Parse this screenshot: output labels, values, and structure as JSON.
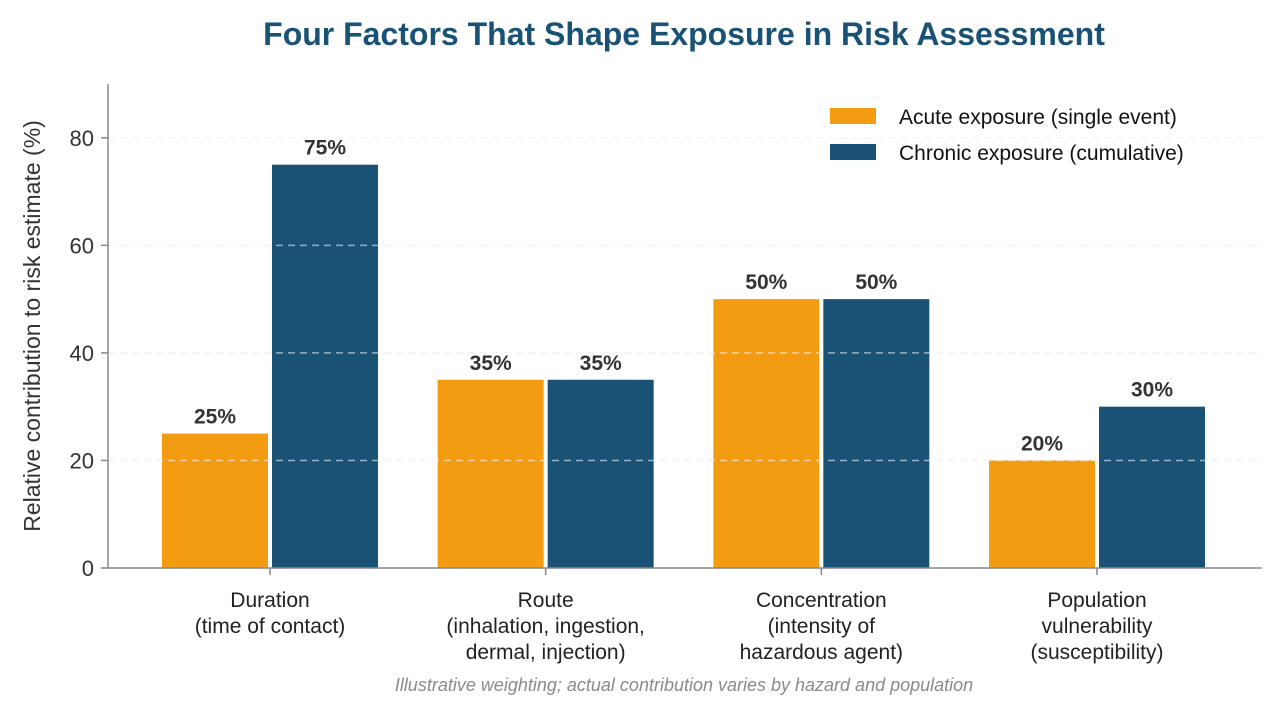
{
  "chart_data": {
    "type": "bar",
    "title": "Four Factors That Shape Exposure in Risk Assessment",
    "ylabel": "Relative contribution to risk estimate (%)",
    "xlabel": "",
    "ylim": [
      0,
      90
    ],
    "yticks": [
      0,
      20,
      40,
      60,
      80
    ],
    "grid": true,
    "legend_position": "top-right",
    "categories": [
      [
        "Duration",
        "(time of contact)"
      ],
      [
        "Route",
        "(inhalation, ingestion,",
        "dermal, injection)"
      ],
      [
        "Concentration",
        "(intensity of",
        "hazardous agent)"
      ],
      [
        "Population",
        "vulnerability",
        "(susceptibility)"
      ]
    ],
    "series": [
      {
        "name": "Acute exposure (single event)",
        "color": "#F39C12",
        "values": [
          25,
          35,
          50,
          20
        ]
      },
      {
        "name": "Chronic exposure (cumulative)",
        "color": "#1A5276",
        "values": [
          75,
          35,
          50,
          30
        ]
      }
    ],
    "value_suffix": "%",
    "annotation": "Illustrative weighting; actual contribution varies by hazard and population",
    "colors": {
      "title": "#1A5276",
      "axis": "#888888",
      "grid": "#dddddd"
    }
  }
}
